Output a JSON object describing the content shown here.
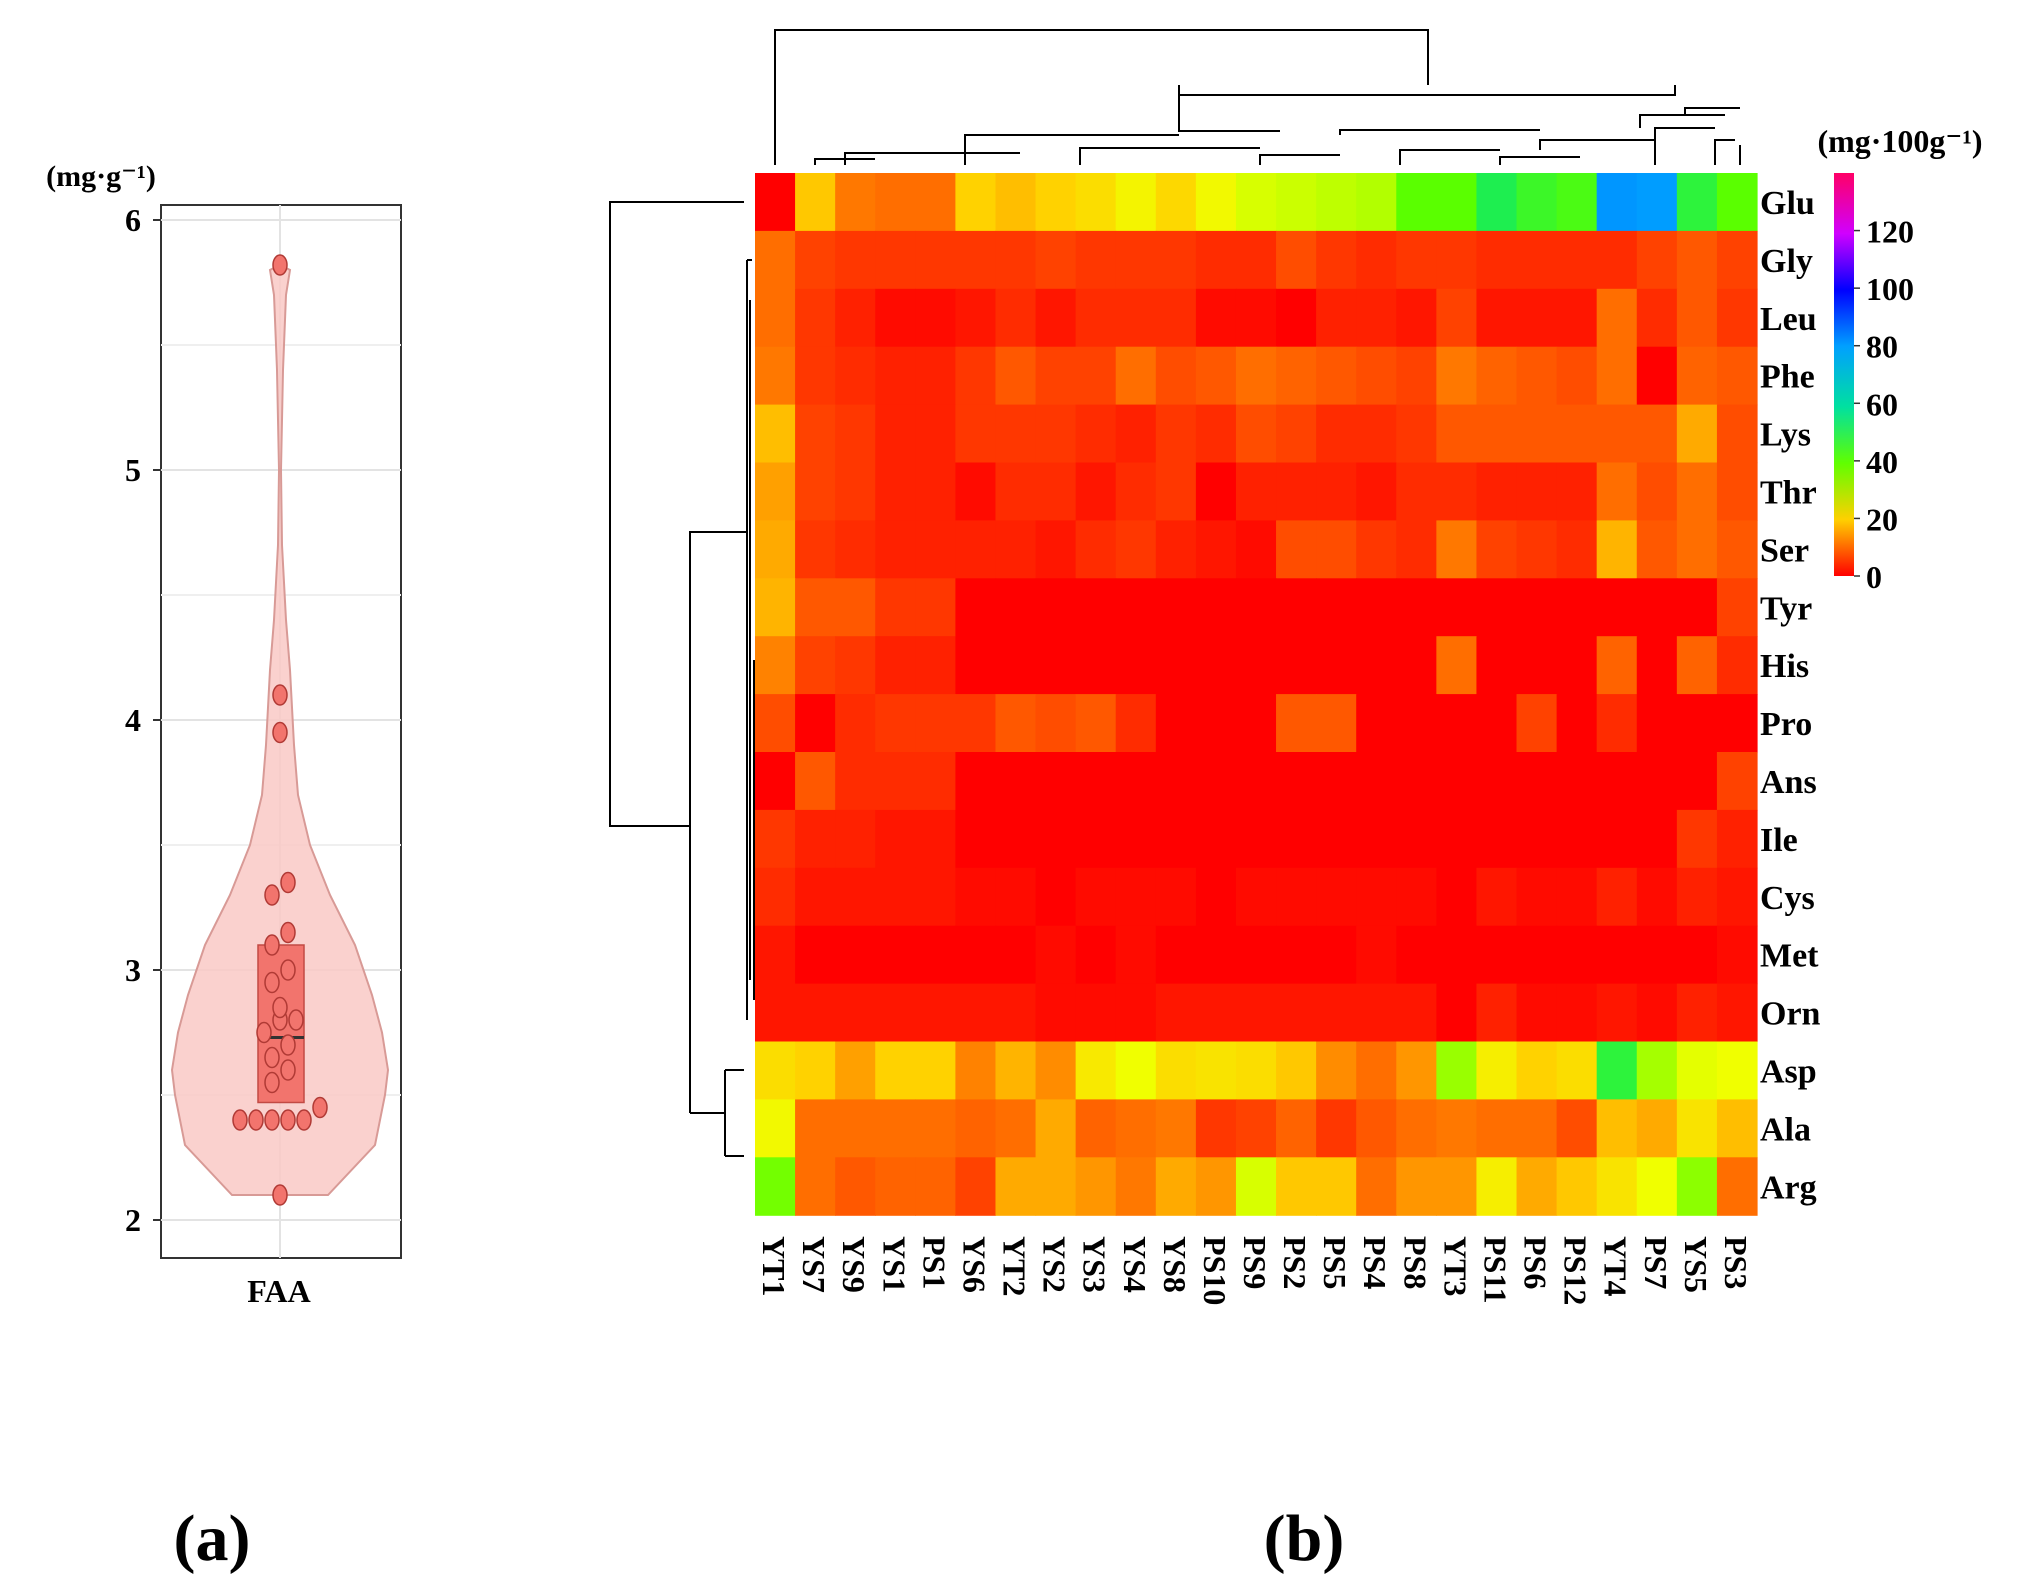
{
  "panels": {
    "a": "(a)",
    "b": "(b)"
  },
  "colors": {
    "gray_dots": "#555555",
    "violin_fill": "#f9c9c6",
    "box_fill": "#f2746d",
    "point_fill": "#f2746d",
    "point_stroke": "#b03a35"
  },
  "chart_data": [
    {
      "type": "violin",
      "panel": "a",
      "unit_label": "(mg·g⁻¹)",
      "ylim": [
        1.9,
        6.1
      ],
      "yticks": [
        "2",
        "3",
        "4",
        "5",
        "6"
      ],
      "category": "FAA",
      "points": [
        2.1,
        2.4,
        2.4,
        2.4,
        2.4,
        2.4,
        2.45,
        2.55,
        2.6,
        2.65,
        2.7,
        2.75,
        2.8,
        2.8,
        2.85,
        2.95,
        3.0,
        3.1,
        3.15,
        3.3,
        3.35,
        3.95,
        4.1,
        5.82
      ],
      "box": {
        "q1": 2.47,
        "median": 2.73,
        "q3": 3.1
      },
      "grid": true
    },
    {
      "type": "heatmap",
      "panel": "b",
      "colorbar_title": "(mg·100g⁻¹)",
      "colorbar_ticks": [
        "0",
        "20",
        "40",
        "60",
        "80",
        "100",
        "120"
      ],
      "colorbar_range": [
        0,
        140
      ],
      "columns": [
        "YT1",
        "YS7",
        "YS9",
        "YS1",
        "PS1",
        "YS6",
        "YT2",
        "YS2",
        "YS3",
        "YS4",
        "YS8",
        "PS10",
        "PS9",
        "PS2",
        "PS5",
        "PS4",
        "PS8",
        "YT3",
        "PS11",
        "PS6",
        "PS12",
        "YT4",
        "PS7",
        "YS5",
        "PS3"
      ],
      "rows": [
        "Glu",
        "Gly",
        "Leu",
        "Phe",
        "Lys",
        "Thr",
        "Ser",
        "Tyr",
        "His",
        "Pro",
        "Ans",
        "Ile",
        "Cys",
        "Met",
        "Orn",
        "Asp",
        "Ala",
        "Arg"
      ],
      "values": [
        [
          0,
          19,
          11,
          10,
          10,
          20,
          18,
          20,
          22,
          26,
          21,
          27,
          30,
          31,
          32,
          33,
          40,
          40,
          48,
          44,
          42,
          80,
          78,
          46,
          40
        ],
        [
          10,
          6,
          5,
          5,
          5,
          5,
          5,
          6,
          5,
          5,
          5,
          4,
          4,
          7,
          5,
          4,
          5,
          5,
          4,
          4,
          4,
          4,
          6,
          8,
          6
        ],
        [
          10,
          5,
          3,
          1,
          1,
          2,
          4,
          2,
          4,
          4,
          4,
          1,
          1,
          0,
          3,
          3,
          2,
          6,
          2,
          2,
          2,
          10,
          4,
          8,
          5
        ],
        [
          11,
          5,
          4,
          3,
          3,
          5,
          8,
          6,
          6,
          10,
          7,
          8,
          10,
          9,
          8,
          7,
          6,
          11,
          9,
          8,
          7,
          10,
          0,
          9,
          8
        ],
        [
          18,
          6,
          5,
          3,
          3,
          5,
          5,
          5,
          4,
          3,
          5,
          4,
          7,
          6,
          4,
          4,
          5,
          8,
          8,
          8,
          8,
          8,
          8,
          16,
          7
        ],
        [
          15,
          6,
          5,
          3,
          3,
          1,
          4,
          4,
          2,
          4,
          5,
          0,
          3,
          3,
          3,
          2,
          4,
          4,
          3,
          3,
          3,
          10,
          7,
          10,
          7
        ],
        [
          16,
          5,
          4,
          3,
          3,
          3,
          3,
          2,
          4,
          5,
          3,
          2,
          1,
          7,
          7,
          5,
          4,
          11,
          6,
          5,
          4,
          17,
          8,
          10,
          8
        ],
        [
          17,
          8,
          8,
          5,
          5,
          0,
          0,
          0,
          0,
          0,
          0,
          0,
          0,
          0,
          0,
          0,
          0,
          0,
          0,
          0,
          0,
          0,
          0,
          0,
          6
        ],
        [
          12,
          6,
          5,
          3,
          3,
          0,
          0,
          0,
          0,
          0,
          0,
          0,
          0,
          0,
          0,
          0,
          0,
          10,
          0,
          0,
          0,
          9,
          0,
          9,
          4
        ],
        [
          7,
          0,
          4,
          5,
          5,
          5,
          8,
          7,
          8,
          4,
          0,
          0,
          0,
          8,
          8,
          0,
          0,
          0,
          0,
          6,
          0,
          4,
          0,
          0,
          0
        ],
        [
          0,
          8,
          4,
          4,
          4,
          0,
          0,
          0,
          0,
          0,
          0,
          0,
          0,
          0,
          0,
          0,
          0,
          0,
          0,
          0,
          0,
          0,
          0,
          0,
          6
        ],
        [
          5,
          3,
          3,
          2,
          2,
          0,
          0,
          0,
          0,
          0,
          0,
          0,
          0,
          0,
          0,
          0,
          0,
          0,
          0,
          0,
          0,
          0,
          0,
          5,
          3
        ],
        [
          4,
          2,
          2,
          2,
          2,
          1,
          1,
          0,
          1,
          1,
          1,
          0,
          1,
          1,
          1,
          1,
          1,
          0,
          2,
          1,
          1,
          3,
          1,
          3,
          2
        ],
        [
          2,
          0,
          0,
          0,
          0,
          0,
          0,
          1,
          0,
          1,
          0,
          0,
          0,
          0,
          0,
          1,
          0,
          0,
          0,
          0,
          0,
          0,
          0,
          0,
          1
        ],
        [
          2,
          2,
          2,
          2,
          2,
          2,
          2,
          1,
          1,
          1,
          2,
          2,
          2,
          2,
          2,
          2,
          2,
          0,
          3,
          1,
          1,
          2,
          1,
          3,
          2
        ],
        [
          22,
          20,
          15,
          20,
          20,
          12,
          17,
          13,
          24,
          28,
          22,
          23,
          22,
          19,
          13,
          10,
          14,
          35,
          25,
          20,
          22,
          46,
          34,
          29,
          28
        ],
        [
          27,
          10,
          10,
          10,
          10,
          9,
          10,
          16,
          9,
          10,
          11,
          5,
          6,
          9,
          5,
          8,
          10,
          11,
          10,
          10,
          7,
          18,
          16,
          23,
          18
        ],
        [
          38,
          10,
          8,
          9,
          9,
          6,
          16,
          16,
          14,
          11,
          16,
          14,
          30,
          19,
          19,
          10,
          14,
          14,
          25,
          16,
          19,
          23,
          28,
          36,
          10
        ]
      ]
    }
  ]
}
